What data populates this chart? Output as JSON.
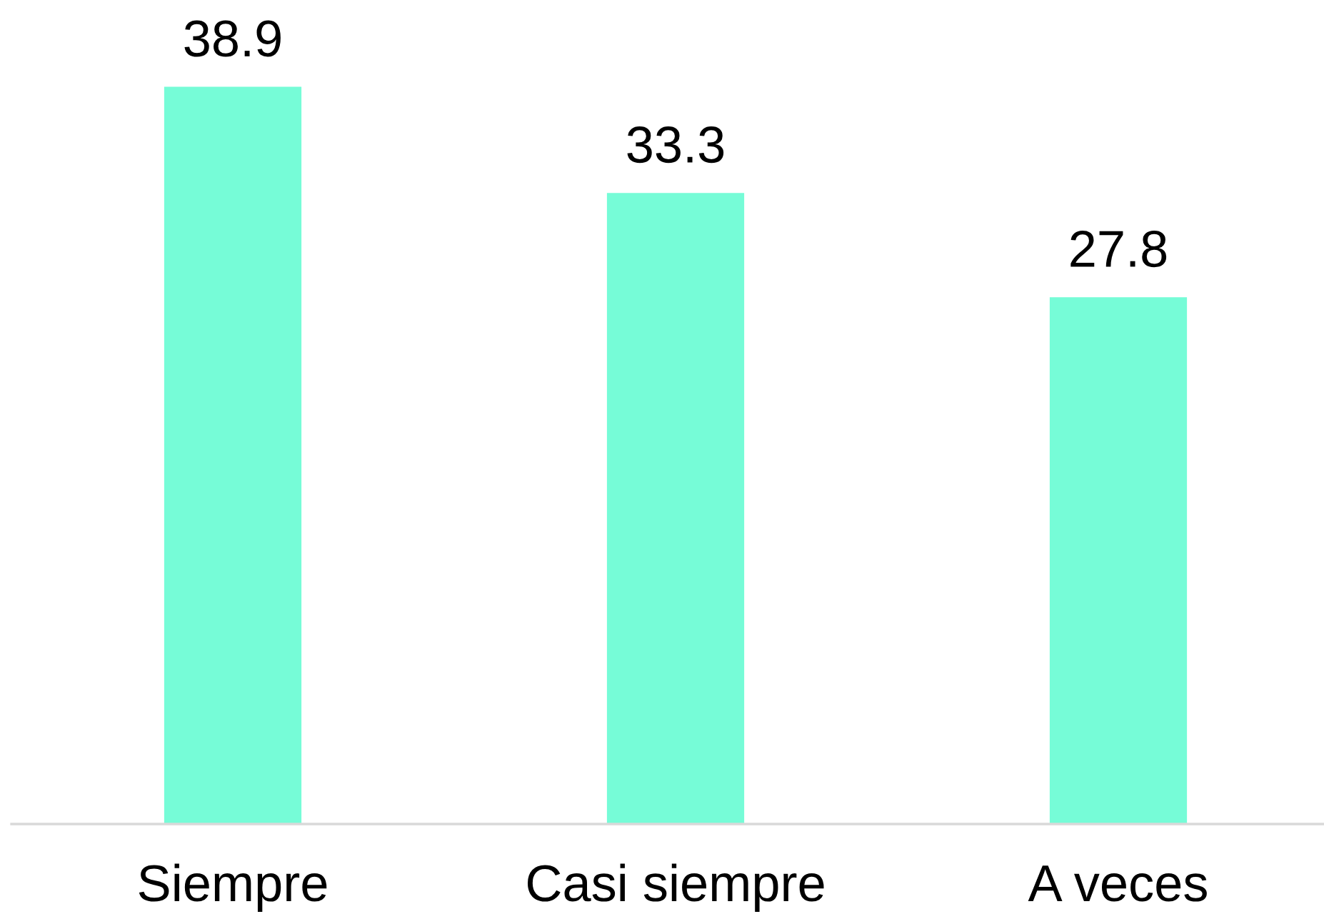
{
  "chart_data": {
    "type": "bar",
    "categories": [
      "Siempre",
      "Casi siempre",
      "A veces"
    ],
    "values": [
      38.9,
      33.3,
      27.8
    ],
    "color": "#76fcd7",
    "data_labels": true,
    "grid": false,
    "legend": false
  }
}
